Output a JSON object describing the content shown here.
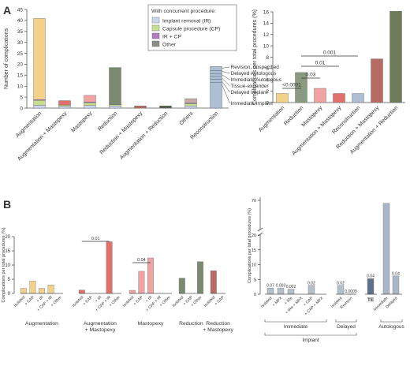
{
  "panels": {
    "a": "A",
    "b": "B"
  },
  "chart_data": [
    {
      "id": "A-left",
      "type": "bar",
      "stacked": true,
      "ylabel": "Number of complications",
      "ylim": [
        0,
        45
      ],
      "yticks": [
        0,
        5,
        10,
        15,
        20,
        25,
        30,
        35,
        40,
        45
      ],
      "categories": [
        "Augmentation",
        "Augmentation + Mastopexy",
        "Mastopexy",
        "Reduction",
        "Reduction + Mastopexy",
        "Augmentation + Reduction",
        "Others",
        "Reconstruction"
      ],
      "base_colors": [
        "#f2d28a",
        "#e2706a",
        "#f0a3a0",
        "#7a8a70",
        "#b86a64",
        "#4e5c4a",
        "#c9a9a8",
        "#aebfd4"
      ],
      "series": [
        {
          "name": "Other",
          "color": "#8a8f88",
          "values": [
            37,
            2,
            3,
            17,
            1,
            1,
            2,
            19
          ]
        },
        {
          "name": "IR + CP",
          "color": "#b07cc0",
          "values": [
            0.4,
            0,
            0.4,
            0,
            0,
            0,
            0.3,
            0
          ]
        },
        {
          "name": "Capsule procedure (CP)",
          "color": "#c6df8e",
          "values": [
            2.2,
            0.6,
            1.2,
            0.5,
            0,
            0,
            1,
            0
          ]
        },
        {
          "name": "Implant removal (IR)",
          "color": "#c9d6ec",
          "values": [
            1.3,
            0.8,
            1.2,
            1.0,
            0,
            0,
            1,
            0
          ]
        }
      ],
      "legend_title": "With concurrent procedure:",
      "legend": [
        "Implant removal (IR)",
        "Capsule procedure (CP)",
        "IR + CP",
        "Other"
      ],
      "reconstruction_labels": [
        "Revision, unspecified",
        "Delayed Autologous",
        "Immediate Autologous",
        "Tissue-expander",
        "Delayed Implant",
        "Immediate Implant"
      ]
    },
    {
      "id": "A-right",
      "type": "bar",
      "ylabel": "Complications per total procedures (%)",
      "ylim": [
        0,
        16
      ],
      "yticks": [
        0,
        2,
        4,
        6,
        8,
        10,
        12,
        14,
        16
      ],
      "categories": [
        "Augmentation",
        "Reduction",
        "Mastopexy",
        "Augmentation + Mastopexy",
        "Reconstruction",
        "Reduction + Mastopexy",
        "Augmentation + Reduction"
      ],
      "colors": [
        "#f2d28a",
        "#8a9a80",
        "#f0a3a0",
        "#e2706a",
        "#aebfd4",
        "#b86a64",
        "#6e7a58"
      ],
      "values": [
        1.6,
        5.3,
        2.5,
        1.6,
        1.6,
        7.7,
        16.1
      ],
      "pvalues": [
        {
          "text": "<0.0001",
          "from": 0,
          "to": 1
        },
        {
          "text": "0.03",
          "from": 1,
          "to": 2
        },
        {
          "text": "0.01",
          "from": 1,
          "to": 3
        },
        {
          "text": "0.001",
          "from": 1,
          "to": 4
        }
      ]
    },
    {
      "id": "B-left",
      "type": "bar",
      "ylabel": "Complications per total procedures (%)",
      "ylim": [
        0,
        20
      ],
      "yticks": [
        0,
        5,
        10,
        15,
        20
      ],
      "groups": [
        {
          "name": "Augmentation",
          "color": "#f2d28a",
          "labels": [
            "Isolated",
            "+ CAP",
            "+ IR",
            "+ CAP + IR",
            "+ Other"
          ],
          "values": [
            1.8,
            4.4,
            1.8,
            3.0,
            0
          ]
        },
        {
          "name": "Augmentation + Mastopexy",
          "color": "#e2706a",
          "labels": [
            "Isolated",
            "+ CAP",
            "+ IR",
            "+ CAP + IR",
            "+ Other"
          ],
          "values": [
            1.2,
            0,
            0,
            18.2,
            0
          ]
        },
        {
          "name": "Mastopexy",
          "color": "#f0a3a0",
          "labels": [
            "Isolated",
            "+ CAP",
            "+ IR",
            "+ CAP + IR",
            "+ Other"
          ],
          "values": [
            1.1,
            7.8,
            12.5,
            0,
            0
          ]
        },
        {
          "name": "Reduction",
          "color": "#7a8a70",
          "labels": [
            "Isolated",
            "+ CAP",
            "+ Other"
          ],
          "values": [
            5.4,
            0,
            11.2
          ]
        },
        {
          "name": "Reduction + Mastopexy",
          "color": "#b86a64",
          "labels": [
            "Isolated",
            "+ CAP"
          ],
          "values": [
            8.0,
            0
          ]
        }
      ],
      "pvalues": [
        {
          "text": "0.01",
          "group": 1
        },
        {
          "text": "0.04",
          "group": 2
        }
      ]
    },
    {
      "id": "B-right",
      "type": "bar",
      "ylabel": "Complications per total procedures (%)",
      "yticks_lower": [
        0,
        5,
        10,
        15,
        20
      ],
      "yticks_upper": [
        70
      ],
      "labels": [
        "Isolated",
        "+ MPX",
        "+ IRe",
        "+ IRe + MPX",
        "+ CAP",
        "+ CAP + MPX",
        "Isolated",
        "Revision",
        "TE",
        "Immediate",
        "Delayed"
      ],
      "values": [
        2.1,
        2.1,
        1.7,
        0,
        3.0,
        0,
        3.0,
        0.1,
        5.3,
        65,
        6.2
      ],
      "colors": [
        "#b4bfc8",
        "#b4bfc8",
        "#b4bfc8",
        "#b4bfc8",
        "#b4bfc8",
        "#b4bfc8",
        "#b4bfc8",
        "#b4bfc8",
        "#5d7188",
        "#aab6c6",
        "#aab6c6"
      ],
      "value_labels": [
        "0.07",
        "0.003",
        "0.002",
        "",
        "0.02",
        "",
        "0.02",
        "0.0009",
        "0.04",
        "",
        "0.04"
      ],
      "groups": [
        {
          "name": "Immediate",
          "from": 0,
          "to": 5
        },
        {
          "name": "Delayed",
          "from": 6,
          "to": 7
        },
        {
          "name": "TE",
          "from": 8,
          "to": 8
        },
        {
          "name": "Autologous",
          "from": 9,
          "to": 10
        }
      ],
      "supergroup": "Implant"
    }
  ]
}
